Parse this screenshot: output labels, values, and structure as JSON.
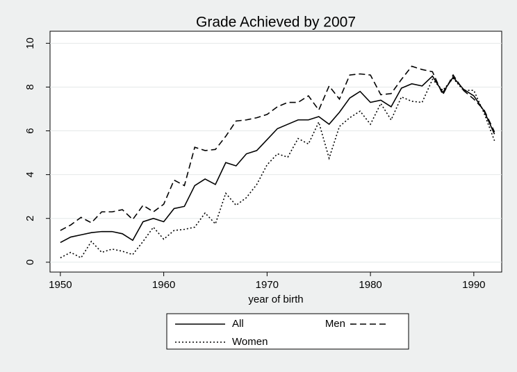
{
  "chart_data": {
    "type": "line",
    "title": "Grade Achieved by 2007",
    "x_label": "year of birth",
    "x": [
      1950,
      1951,
      1952,
      1953,
      1954,
      1955,
      1956,
      1957,
      1958,
      1959,
      1960,
      1961,
      1962,
      1963,
      1964,
      1965,
      1966,
      1967,
      1968,
      1969,
      1970,
      1971,
      1972,
      1973,
      1974,
      1975,
      1976,
      1977,
      1978,
      1979,
      1980,
      1981,
      1982,
      1983,
      1984,
      1985,
      1986,
      1987,
      1988,
      1989,
      1990,
      1991,
      1992
    ],
    "series": [
      {
        "name": "All",
        "color": "#000000",
        "line_style": "solid",
        "values": [
          0.9,
          1.15,
          1.25,
          1.35,
          1.4,
          1.4,
          1.3,
          1.0,
          1.85,
          2.0,
          1.85,
          2.45,
          2.55,
          3.5,
          3.8,
          3.55,
          4.55,
          4.4,
          4.95,
          5.1,
          5.6,
          6.1,
          6.3,
          6.5,
          6.5,
          6.65,
          6.3,
          6.85,
          7.5,
          7.8,
          7.3,
          7.4,
          7.1,
          7.95,
          8.15,
          8.05,
          8.5,
          7.75,
          8.45,
          7.9,
          7.6,
          6.9,
          5.85
        ]
      },
      {
        "name": "Men",
        "color": "#000000",
        "line_style": "dashed",
        "values": [
          1.45,
          1.7,
          2.05,
          1.8,
          2.3,
          2.3,
          2.4,
          1.95,
          2.6,
          2.3,
          2.65,
          3.75,
          3.5,
          5.25,
          5.1,
          5.15,
          5.75,
          6.45,
          6.5,
          6.6,
          6.75,
          7.1,
          7.3,
          7.3,
          7.6,
          6.95,
          8.05,
          7.45,
          8.55,
          8.6,
          8.55,
          7.65,
          7.7,
          8.35,
          8.95,
          8.8,
          8.7,
          7.65,
          8.55,
          7.85,
          7.45,
          6.95,
          5.95
        ]
      },
      {
        "name": "Women",
        "color": "#000000",
        "line_style": "dotted",
        "values": [
          0.2,
          0.45,
          0.2,
          0.95,
          0.45,
          0.6,
          0.5,
          0.35,
          0.95,
          1.6,
          1.05,
          1.45,
          1.5,
          1.6,
          2.25,
          1.75,
          3.15,
          2.6,
          2.95,
          3.55,
          4.45,
          4.95,
          4.8,
          5.65,
          5.4,
          6.4,
          4.75,
          6.2,
          6.6,
          6.9,
          6.3,
          7.25,
          6.5,
          7.55,
          7.35,
          7.3,
          8.35,
          7.85,
          8.4,
          7.85,
          7.85,
          6.8,
          5.55
        ]
      }
    ],
    "xlim": [
      1949,
      1992.7
    ],
    "xticks": [
      1950,
      1960,
      1970,
      1980,
      1990
    ],
    "ylim": [
      -0.45,
      10.55
    ],
    "yticks": [
      0,
      2,
      4,
      6,
      8,
      10
    ],
    "grid": true
  }
}
